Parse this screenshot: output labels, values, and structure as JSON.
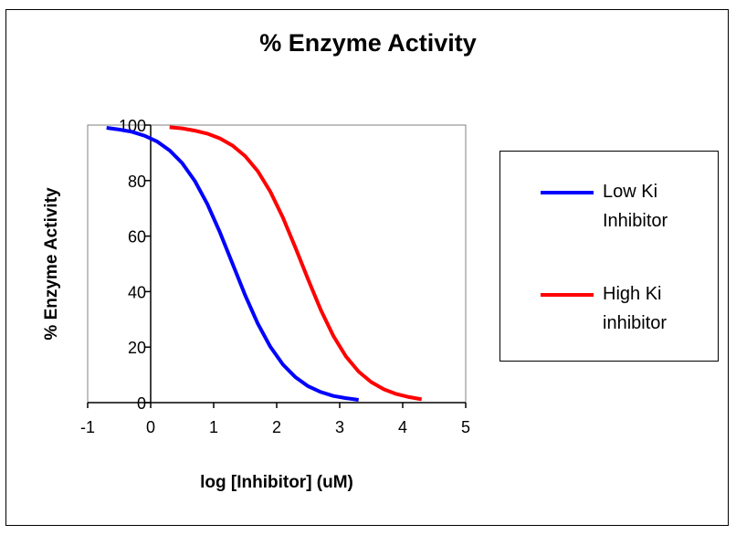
{
  "chart_data": {
    "type": "line",
    "title": "% Enzyme Activity",
    "xlabel": "log [Inhibitor] (uM)",
    "ylabel": "% Enzyme Activity",
    "xlim": [
      -1,
      5
    ],
    "ylim": [
      0,
      100
    ],
    "xticks": [
      "-1",
      "0",
      "1",
      "2",
      "3",
      "4",
      "5"
    ],
    "yticks": [
      "0",
      "20",
      "40",
      "60",
      "80",
      "100"
    ],
    "grid": false,
    "legend_position": "right",
    "series": [
      {
        "name_lines": [
          "Low Ki",
          "Inhibitor"
        ],
        "color": "#0000FF",
        "x": [
          -0.7,
          -0.5,
          -0.3,
          -0.1,
          0.1,
          0.3,
          0.5,
          0.7,
          0.9,
          1.1,
          1.3,
          1.5,
          1.7,
          1.9,
          2.1,
          2.3,
          2.5,
          2.7,
          2.9,
          3.1,
          3.3
        ],
        "y": [
          99.0,
          98.4,
          97.6,
          96.2,
          94.1,
          90.9,
          86.3,
          79.9,
          71.5,
          61.3,
          50.0,
          38.7,
          28.5,
          20.1,
          13.7,
          9.1,
          5.9,
          3.8,
          2.4,
          1.6,
          1.0
        ]
      },
      {
        "name_lines": [
          "High Ki",
          "inhibitor"
        ],
        "color": "#FF0000",
        "x": [
          0.3,
          0.5,
          0.7,
          0.9,
          1.1,
          1.3,
          1.5,
          1.7,
          1.9,
          2.1,
          2.3,
          2.5,
          2.7,
          2.9,
          3.1,
          3.3,
          3.5,
          3.7,
          3.9,
          4.1,
          4.3
        ],
        "y": [
          99.2,
          98.8,
          98.0,
          96.9,
          95.2,
          92.6,
          88.8,
          83.4,
          76.0,
          66.6,
          55.7,
          44.3,
          33.4,
          24.0,
          16.6,
          11.2,
          7.4,
          4.8,
          3.1,
          2.0,
          1.2
        ]
      }
    ]
  }
}
